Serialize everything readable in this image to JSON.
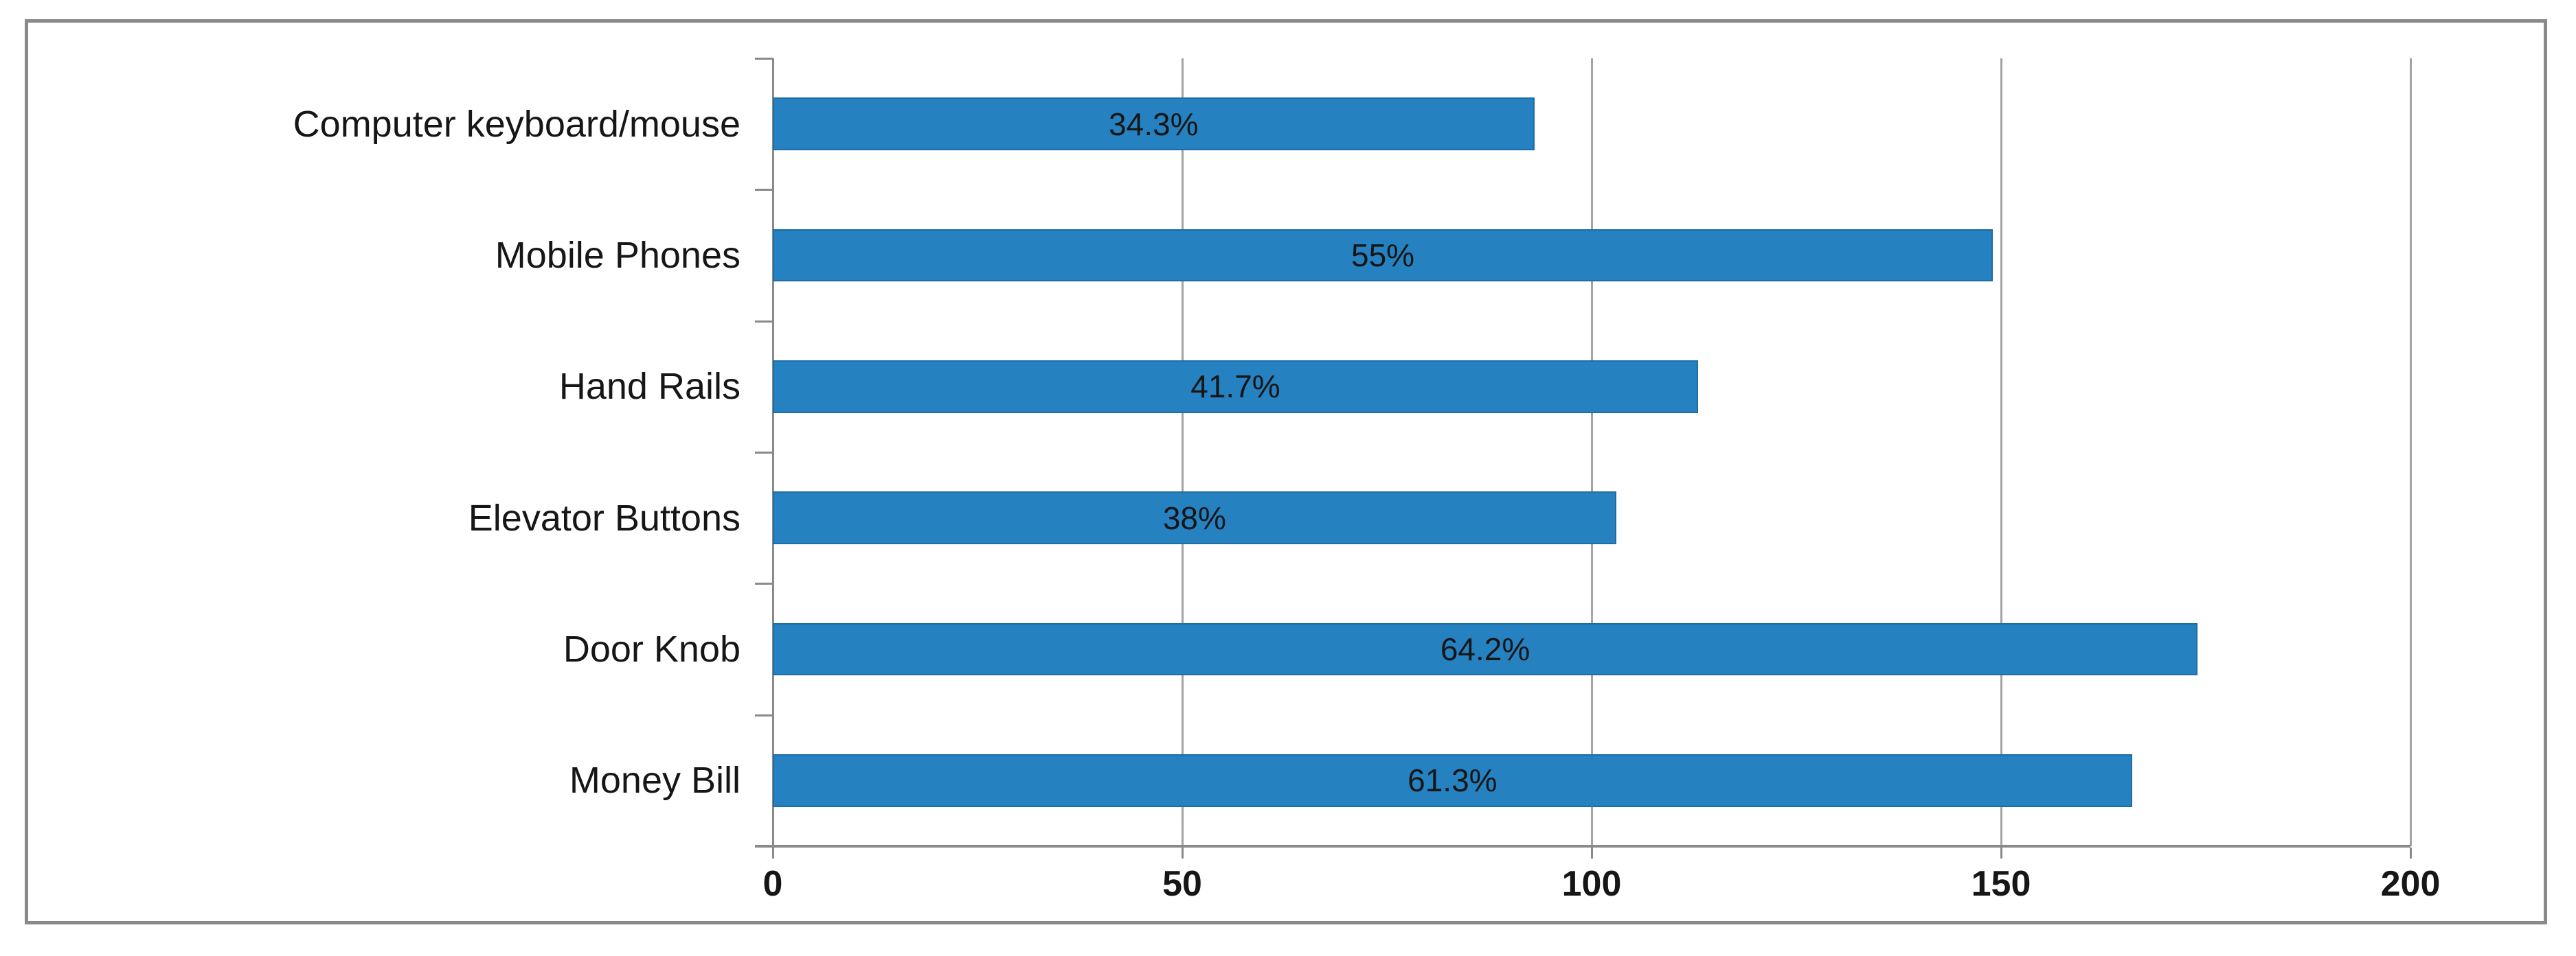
{
  "chart_data": {
    "type": "bar",
    "orientation": "horizontal",
    "title": "",
    "xlabel": "",
    "ylabel": "",
    "categories": [
      "Computer keyboard/mouse",
      "Mobile Phones",
      "Hand Rails",
      "Elevator Buttons",
      "Door Knob",
      "Money Bill"
    ],
    "values": [
      93,
      149,
      113,
      103,
      174,
      166
    ],
    "value_labels": [
      "34.3%",
      "55%",
      "41.7%",
      "38%",
      "64.2%",
      "61.3%"
    ],
    "value_label_position": "inside-center",
    "xlim": [
      0,
      200
    ],
    "x_ticks": [
      0,
      50,
      100,
      150,
      200
    ],
    "grid": true,
    "legend": false,
    "colors": {
      "bar_fill": "#2681c1",
      "bar_border": "#1f6da6",
      "gridline": "#a3a3a3",
      "axis_line": "#8a8a8a",
      "frame_border": "#8a8a8a",
      "text": "#161616",
      "background": "#ffffff"
    }
  }
}
